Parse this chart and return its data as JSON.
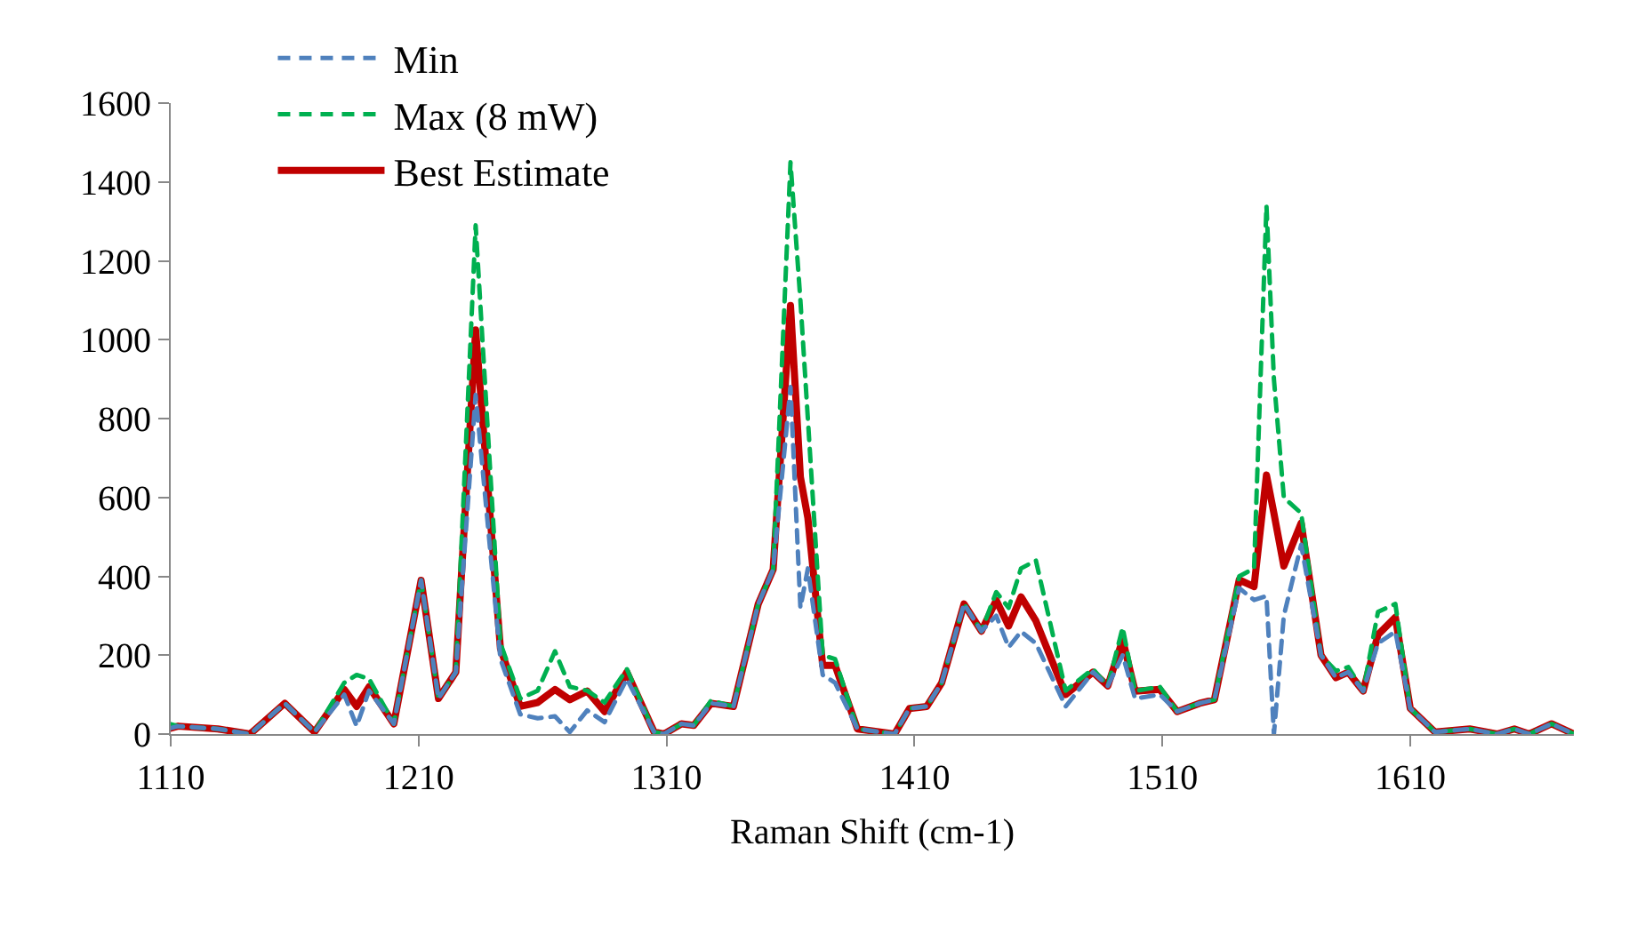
{
  "chart_data": {
    "type": "line",
    "xlabel": "Raman Shift (cm-1)",
    "x": [
      1110,
      1113,
      1129,
      1142,
      1156,
      1168,
      1180,
      1185,
      1190,
      1200,
      1211,
      1218,
      1225,
      1233,
      1243,
      1251,
      1258,
      1265,
      1271,
      1278,
      1285,
      1294,
      1305,
      1309,
      1316,
      1321,
      1328,
      1337,
      1347,
      1353,
      1360,
      1364,
      1367,
      1373,
      1378,
      1387,
      1402,
      1408,
      1415,
      1421,
      1430,
      1437,
      1443,
      1448,
      1453,
      1459,
      1471,
      1482,
      1488,
      1494,
      1499,
      1509,
      1516,
      1525,
      1531,
      1541,
      1547,
      1552,
      1555,
      1559,
      1566,
      1574,
      1580,
      1585,
      1591,
      1597,
      1604,
      1610,
      1620,
      1634,
      1645,
      1652,
      1658,
      1667,
      1676
    ],
    "series": [
      {
        "name": "Min",
        "color": "#4f81bd",
        "line_style": "dashed",
        "values": [
          15,
          20,
          13,
          0,
          78,
          5,
          100,
          20,
          110,
          26,
          390,
          90,
          157,
          860,
          190,
          50,
          40,
          45,
          5,
          60,
          30,
          140,
          5,
          0,
          26,
          22,
          78,
          70,
          330,
          417,
          880,
          320,
          420,
          150,
          130,
          13,
          0,
          65,
          70,
          130,
          330,
          261,
          300,
          220,
          260,
          230,
          70,
          157,
          122,
          200,
          90,
          100,
          57,
          78,
          87,
          370,
          340,
          350,
          0,
          300,
          480,
          200,
          143,
          157,
          109,
          230,
          260,
          65,
          5,
          13,
          0,
          13,
          0,
          26,
          0
        ]
      },
      {
        "name": "Max (8 mW)",
        "color": "#00b050",
        "line_style": "dashed",
        "values": [
          25,
          20,
          13,
          0,
          78,
          5,
          130,
          150,
          140,
          26,
          390,
          90,
          157,
          1290,
          230,
          90,
          110,
          210,
          120,
          110,
          80,
          165,
          5,
          0,
          26,
          22,
          85,
          70,
          330,
          417,
          1450,
          1100,
          800,
          200,
          190,
          13,
          0,
          65,
          70,
          130,
          330,
          261,
          360,
          320,
          420,
          440,
          110,
          165,
          122,
          270,
          109,
          120,
          57,
          78,
          87,
          400,
          420,
          1340,
          900,
          600,
          560,
          200,
          160,
          170,
          109,
          310,
          330,
          65,
          5,
          13,
          0,
          13,
          0,
          26,
          0
        ]
      },
      {
        "name": "Best Estimate",
        "color": "#c00000",
        "line_style": "solid",
        "values": [
          15,
          20,
          13,
          0,
          78,
          5,
          113,
          70,
          120,
          26,
          390,
          90,
          157,
          1025,
          217,
          70,
          80,
          113,
          87,
          109,
          57,
          157,
          5,
          0,
          26,
          22,
          78,
          70,
          330,
          417,
          1087,
          652,
          548,
          174,
          174,
          13,
          0,
          65,
          70,
          130,
          330,
          261,
          339,
          274,
          348,
          287,
          100,
          157,
          122,
          239,
          109,
          113,
          57,
          78,
          87,
          391,
          374,
          657,
          560,
          426,
          535,
          200,
          143,
          157,
          109,
          252,
          296,
          65,
          5,
          13,
          0,
          13,
          0,
          26,
          0
        ]
      }
    ],
    "xlim": [
      1110,
      1676
    ],
    "xticks": [
      1110,
      1210,
      1310,
      1410,
      1510,
      1610
    ],
    "ylim": [
      0,
      1600
    ],
    "yticks": [
      0,
      200,
      400,
      600,
      800,
      1000,
      1200,
      1400,
      1600
    ],
    "grid": false,
    "legend": "top left",
    "marker": "none"
  }
}
